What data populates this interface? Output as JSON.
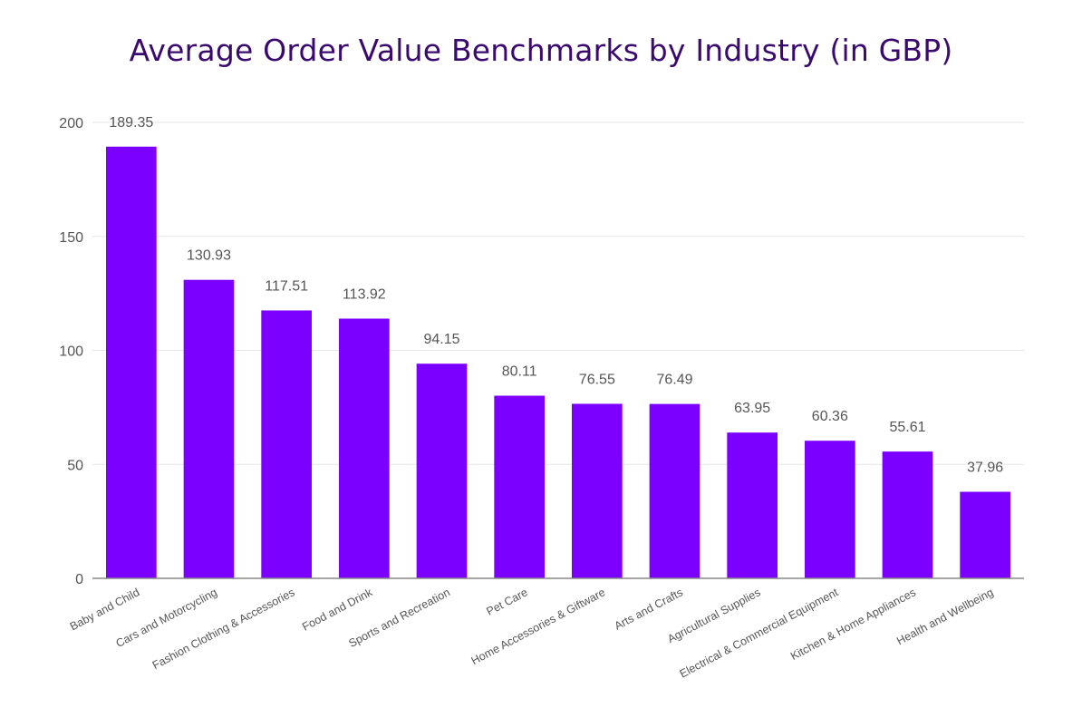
{
  "chart_data": {
    "type": "bar",
    "title": "Average Order Value Benchmarks by Industry (in GBP)",
    "xlabel": "",
    "ylabel": "",
    "ylim": [
      0,
      200
    ],
    "yticks": [
      0,
      50,
      100,
      150,
      200
    ],
    "grid": true,
    "bar_color": "#7b00ff",
    "categories": [
      "Baby and Child",
      "Cars and Motorcycling",
      "Fashion Clothing & Accessories",
      "Food and Drink",
      "Sports and Recreation",
      "Pet Care",
      "Home Accessories & Giftware",
      "Arts and Crafts",
      "Agricultural Supplies",
      "Electrical & Commercial Equipment",
      "Kitchen & Home Appliances",
      "Health and Wellbeing"
    ],
    "values": [
      189.35,
      130.93,
      117.51,
      113.92,
      94.15,
      80.11,
      76.55,
      76.49,
      63.95,
      60.36,
      55.61,
      37.96
    ],
    "data_labels": [
      "189.35",
      "130.93",
      "117.51",
      "113.92",
      "94.15",
      "80.11",
      "76.55",
      "76.49",
      "63.95",
      "60.36",
      "55.61",
      "37.96"
    ]
  }
}
